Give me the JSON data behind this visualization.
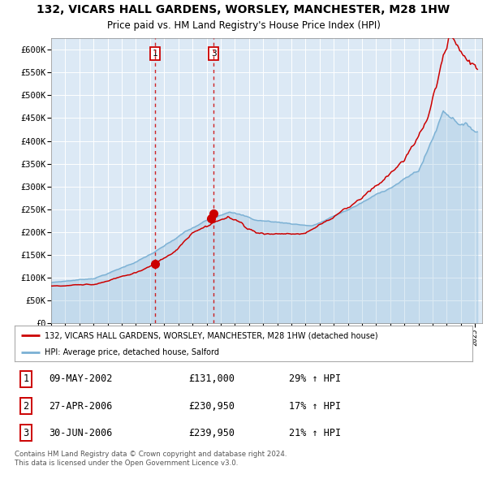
{
  "title": "132, VICARS HALL GARDENS, WORSLEY, MANCHESTER, M28 1HW",
  "subtitle": "Price paid vs. HM Land Registry's House Price Index (HPI)",
  "legend_red": "132, VICARS HALL GARDENS, WORSLEY, MANCHESTER, M28 1HW (detached house)",
  "legend_blue": "HPI: Average price, detached house, Salford",
  "table_rows": [
    {
      "num": "1",
      "date": "09-MAY-2002",
      "price": "£131,000",
      "hpi": "29% ↑ HPI"
    },
    {
      "num": "2",
      "date": "27-APR-2006",
      "price": "£230,950",
      "hpi": "17% ↑ HPI"
    },
    {
      "num": "3",
      "date": "30-JUN-2006",
      "price": "£239,950",
      "hpi": "21% ↑ HPI"
    }
  ],
  "footer": "Contains HM Land Registry data © Crown copyright and database right 2024.\nThis data is licensed under the Open Government Licence v3.0.",
  "sale1_date": 2002.36,
  "sale1_price": 131000,
  "sale2_date": 2006.32,
  "sale2_price": 230950,
  "sale3_date": 2006.5,
  "sale3_price": 239950,
  "vline1_date": 2002.36,
  "vline3_date": 2006.5,
  "ylim": [
    0,
    600000
  ],
  "yticks": [
    0,
    50000,
    100000,
    150000,
    200000,
    250000,
    300000,
    350000,
    400000,
    450000,
    500000,
    550000,
    600000
  ],
  "plot_bg_color": "#dce9f5",
  "red_color": "#cc0000",
  "blue_color": "#7ab0d4",
  "grid_color": "#ffffff",
  "vline_color": "#cc0000",
  "title_fontsize": 10,
  "subtitle_fontsize": 8.5
}
